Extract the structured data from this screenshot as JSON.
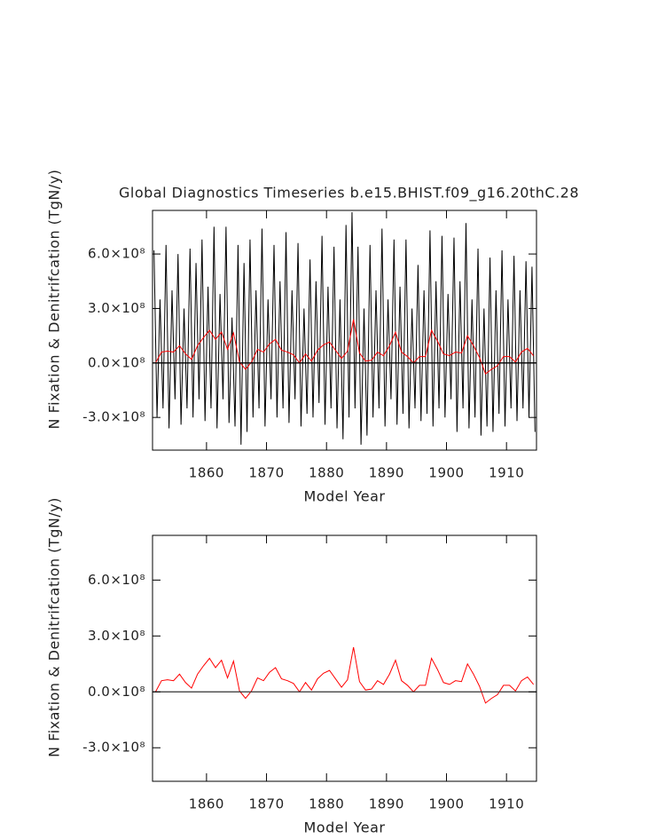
{
  "chart_data": [
    {
      "type": "line",
      "title": "Global Diagnostics Timeseries b.e15.BHIST.f09_g16.20thC.28",
      "x_label": "Model Year",
      "y_label": "N Fixation & Denitrifcation (TgN/y)",
      "xlim": [
        1851,
        1915
      ],
      "ylim": [
        -480000000,
        840000000
      ],
      "xticks": [
        1860,
        1870,
        1880,
        1890,
        1900,
        1910
      ],
      "yticks": [
        {
          "value": -300000000,
          "label": "-3.0×10⁸"
        },
        {
          "value": 0,
          "label": "0.0×10⁸"
        },
        {
          "value": 300000000,
          "label": "3.0×10⁸"
        },
        {
          "value": 600000000,
          "label": "6.0×10⁸"
        }
      ],
      "reference_line": 0,
      "reference_color": "#000000",
      "series": [
        {
          "color": "#000000",
          "x": [
            1851.25,
            1851.75,
            1852.25,
            1852.75,
            1853.25,
            1853.75,
            1854.25,
            1854.75,
            1855.25,
            1855.75,
            1856.25,
            1856.75,
            1857.25,
            1857.75,
            1858.25,
            1858.75,
            1859.25,
            1859.75,
            1860.25,
            1860.75,
            1861.25,
            1861.75,
            1862.25,
            1862.75,
            1863.25,
            1863.75,
            1864.25,
            1864.75,
            1865.25,
            1865.75,
            1866.25,
            1866.75,
            1867.25,
            1867.75,
            1868.25,
            1868.75,
            1869.25,
            1869.75,
            1870.25,
            1870.75,
            1871.25,
            1871.75,
            1872.25,
            1872.75,
            1873.25,
            1873.75,
            1874.25,
            1874.75,
            1875.25,
            1875.75,
            1876.25,
            1876.75,
            1877.25,
            1877.75,
            1878.25,
            1878.75,
            1879.25,
            1879.75,
            1880.25,
            1880.75,
            1881.25,
            1881.75,
            1882.25,
            1882.75,
            1883.25,
            1883.75,
            1884.25,
            1884.75,
            1885.25,
            1885.75,
            1886.25,
            1886.75,
            1887.25,
            1887.75,
            1888.25,
            1888.75,
            1889.25,
            1889.75,
            1890.25,
            1890.75,
            1891.25,
            1891.75,
            1892.25,
            1892.75,
            1893.25,
            1893.75,
            1894.25,
            1894.75,
            1895.25,
            1895.75,
            1896.25,
            1896.75,
            1897.25,
            1897.75,
            1898.25,
            1898.75,
            1899.25,
            1899.75,
            1900.25,
            1900.75,
            1901.25,
            1901.75,
            1902.25,
            1902.75,
            1903.25,
            1903.75,
            1904.25,
            1904.75,
            1905.25,
            1905.75,
            1906.25,
            1906.75,
            1907.25,
            1907.75,
            1908.25,
            1908.75,
            1909.25,
            1909.75,
            1910.25,
            1910.75,
            1911.25,
            1911.75,
            1912.25,
            1912.75,
            1913.25,
            1913.75,
            1914.25,
            1914.75
          ],
          "values": [
            620000000,
            -300000000,
            350000000,
            -250000000,
            650000000,
            -360000000,
            400000000,
            -200000000,
            600000000,
            -340000000,
            300000000,
            -250000000,
            630000000,
            -300000000,
            550000000,
            -200000000,
            680000000,
            -320000000,
            420000000,
            -250000000,
            750000000,
            -360000000,
            380000000,
            -200000000,
            750000000,
            -330000000,
            250000000,
            -350000000,
            650000000,
            -450000000,
            550000000,
            -380000000,
            680000000,
            -300000000,
            400000000,
            -250000000,
            740000000,
            -350000000,
            350000000,
            -200000000,
            650000000,
            -300000000,
            450000000,
            -250000000,
            720000000,
            -330000000,
            400000000,
            -200000000,
            660000000,
            -350000000,
            300000000,
            -280000000,
            570000000,
            -300000000,
            450000000,
            -220000000,
            700000000,
            -340000000,
            420000000,
            -250000000,
            640000000,
            -360000000,
            350000000,
            -420000000,
            760000000,
            -300000000,
            830000000,
            -250000000,
            640000000,
            -450000000,
            300000000,
            -400000000,
            650000000,
            -300000000,
            400000000,
            -250000000,
            740000000,
            -350000000,
            350000000,
            -200000000,
            680000000,
            -340000000,
            420000000,
            -280000000,
            680000000,
            -360000000,
            300000000,
            -250000000,
            540000000,
            -320000000,
            400000000,
            -280000000,
            730000000,
            -350000000,
            450000000,
            -250000000,
            700000000,
            -300000000,
            380000000,
            -200000000,
            690000000,
            -380000000,
            450000000,
            -250000000,
            770000000,
            -360000000,
            350000000,
            -300000000,
            630000000,
            -400000000,
            300000000,
            -350000000,
            580000000,
            -380000000,
            400000000,
            -280000000,
            620000000,
            -350000000,
            350000000,
            -250000000,
            590000000,
            -320000000,
            400000000,
            -250000000,
            560000000,
            -300000000,
            530000000,
            -380000000
          ]
        },
        {
          "color": "#ff0000",
          "x": [
            1851.5,
            1852.5,
            1853.5,
            1854.5,
            1855.5,
            1856.5,
            1857.5,
            1858.5,
            1859.5,
            1860.5,
            1861.5,
            1862.5,
            1863.5,
            1864.5,
            1865.5,
            1866.5,
            1867.5,
            1868.5,
            1869.5,
            1870.5,
            1871.5,
            1872.5,
            1873.5,
            1874.5,
            1875.5,
            1876.5,
            1877.5,
            1878.5,
            1879.5,
            1880.5,
            1881.5,
            1882.5,
            1883.5,
            1884.5,
            1885.5,
            1886.5,
            1887.5,
            1888.5,
            1889.5,
            1890.5,
            1891.5,
            1892.5,
            1893.5,
            1894.5,
            1895.5,
            1896.5,
            1897.5,
            1898.5,
            1899.5,
            1900.5,
            1901.5,
            1902.5,
            1903.5,
            1904.5,
            1905.5,
            1906.5,
            1907.5,
            1908.5,
            1909.5,
            1910.5,
            1911.5,
            1912.5,
            1913.5,
            1914.5
          ],
          "values": [
            0,
            60000000,
            65000000,
            60000000,
            95000000,
            50000000,
            20000000,
            95000000,
            140000000,
            180000000,
            130000000,
            170000000,
            75000000,
            165000000,
            5000000,
            -35000000,
            5000000,
            75000000,
            60000000,
            105000000,
            130000000,
            70000000,
            60000000,
            45000000,
            0,
            50000000,
            10000000,
            70000000,
            100000000,
            115000000,
            70000000,
            25000000,
            65000000,
            240000000,
            55000000,
            10000000,
            15000000,
            60000000,
            40000000,
            95000000,
            170000000,
            60000000,
            35000000,
            0,
            35000000,
            35000000,
            180000000,
            120000000,
            50000000,
            40000000,
            60000000,
            55000000,
            150000000,
            95000000,
            30000000,
            -60000000,
            -35000000,
            -15000000,
            35000000,
            35000000,
            5000000,
            60000000,
            80000000,
            40000000
          ]
        }
      ]
    },
    {
      "type": "line",
      "x_label": "Model Year",
      "y_label": "N Fixation & Denitrifcation (TgN/y)",
      "xlim": [
        1851,
        1915
      ],
      "ylim": [
        -480000000,
        840000000
      ],
      "xticks": [
        1860,
        1870,
        1880,
        1890,
        1900,
        1910
      ],
      "yticks": [
        {
          "value": -300000000,
          "label": "-3.0×10⁸"
        },
        {
          "value": 0,
          "label": "0.0×10⁸"
        },
        {
          "value": 300000000,
          "label": "3.0×10⁸"
        },
        {
          "value": 600000000,
          "label": "6.0×10⁸"
        }
      ],
      "reference_line": 0,
      "reference_color": "#333333",
      "series": [
        {
          "color": "#ff0000",
          "x": [
            1851.5,
            1852.5,
            1853.5,
            1854.5,
            1855.5,
            1856.5,
            1857.5,
            1858.5,
            1859.5,
            1860.5,
            1861.5,
            1862.5,
            1863.5,
            1864.5,
            1865.5,
            1866.5,
            1867.5,
            1868.5,
            1869.5,
            1870.5,
            1871.5,
            1872.5,
            1873.5,
            1874.5,
            1875.5,
            1876.5,
            1877.5,
            1878.5,
            1879.5,
            1880.5,
            1881.5,
            1882.5,
            1883.5,
            1884.5,
            1885.5,
            1886.5,
            1887.5,
            1888.5,
            1889.5,
            1890.5,
            1891.5,
            1892.5,
            1893.5,
            1894.5,
            1895.5,
            1896.5,
            1897.5,
            1898.5,
            1899.5,
            1900.5,
            1901.5,
            1902.5,
            1903.5,
            1904.5,
            1905.5,
            1906.5,
            1907.5,
            1908.5,
            1909.5,
            1910.5,
            1911.5,
            1912.5,
            1913.5,
            1914.5
          ],
          "values": [
            0,
            60000000,
            65000000,
            60000000,
            95000000,
            50000000,
            20000000,
            95000000,
            140000000,
            180000000,
            130000000,
            170000000,
            75000000,
            165000000,
            5000000,
            -35000000,
            5000000,
            75000000,
            60000000,
            105000000,
            130000000,
            70000000,
            60000000,
            45000000,
            0,
            50000000,
            10000000,
            70000000,
            100000000,
            115000000,
            70000000,
            25000000,
            65000000,
            240000000,
            55000000,
            10000000,
            15000000,
            60000000,
            40000000,
            95000000,
            170000000,
            60000000,
            35000000,
            0,
            35000000,
            35000000,
            180000000,
            120000000,
            50000000,
            40000000,
            60000000,
            55000000,
            150000000,
            95000000,
            30000000,
            -60000000,
            -35000000,
            -15000000,
            35000000,
            35000000,
            5000000,
            60000000,
            80000000,
            40000000
          ]
        }
      ]
    }
  ]
}
